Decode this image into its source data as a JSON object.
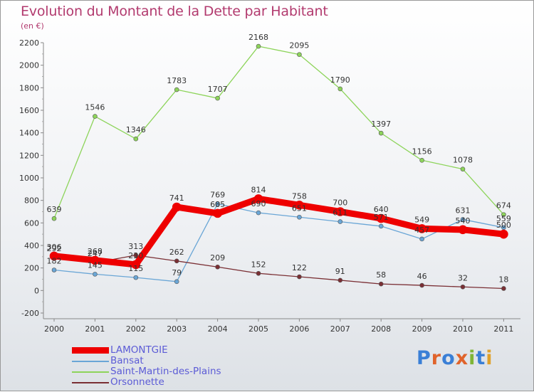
{
  "header": {
    "title": "Evolution du Montant de la Dette par Habitant",
    "subtitle": "(en €)"
  },
  "brand": {
    "logo_text": "Proxiti",
    "colors": [
      "#3a7fd6",
      "#e0632b",
      "#7fb536",
      "#e0a12b"
    ]
  },
  "chart_data": {
    "type": "line",
    "title": "Evolution du Montant de la Dette par Habitant",
    "subtitle": "(en €)",
    "x": [
      "2000",
      "2001",
      "2002",
      "2003",
      "2004",
      "2005",
      "2006",
      "2007",
      "2008",
      "2009",
      "2010",
      "2011"
    ],
    "ylim": [
      -200,
      2200
    ],
    "yticks": [
      -200,
      0,
      200,
      400,
      600,
      800,
      1000,
      1200,
      1400,
      1600,
      1800,
      2000,
      2200
    ],
    "grid": false,
    "legend": "bottom-left",
    "series": [
      {
        "name": "LAMONTGIE",
        "color": "#ee0000",
        "emphasis": "thick",
        "values": [
          306,
          268,
          230,
          741,
          685,
          814,
          758,
          700,
          640,
          549,
          540,
          500
        ],
        "labels": [
          "306",
          "268",
          "230",
          "741",
          "685",
          "814",
          "758",
          "700",
          "640",
          "549",
          "540",
          "500"
        ]
      },
      {
        "name": "Bansat",
        "color": "#6aa6d6",
        "emphasis": "thin",
        "values": [
          182,
          145,
          115,
          79,
          769,
          690,
          651,
          611,
          571,
          457,
          631,
          559
        ],
        "labels": [
          "182",
          "145",
          "115",
          "79",
          "769",
          "690",
          "651",
          "611",
          "571",
          "457",
          "631",
          "559"
        ]
      },
      {
        "name": "Saint-Martin-des-Plains",
        "color": "#8dd45a",
        "emphasis": "thin",
        "values": [
          639,
          1546,
          1346,
          1783,
          1707,
          2168,
          2095,
          1790,
          1397,
          1156,
          1078,
          674
        ],
        "labels": [
          "639",
          "1546",
          "1346",
          "1783",
          "1707",
          "2168",
          "2095",
          "1790",
          "1397",
          "1156",
          "1078",
          "674"
        ]
      },
      {
        "name": "Orsonnette",
        "color": "#7a2f34",
        "emphasis": "thin",
        "values": [
          292,
          247,
          313,
          262,
          209,
          152,
          122,
          91,
          58,
          46,
          32,
          18
        ],
        "labels": [
          "292",
          "247",
          "313",
          "262",
          "209",
          "152",
          "122",
          "91",
          "58",
          "46",
          "32",
          "18"
        ]
      }
    ]
  }
}
